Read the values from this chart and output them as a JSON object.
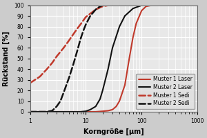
{
  "title": "",
  "xlabel": "Korngröße [µm]",
  "ylabel": "Rückstand [%]",
  "xlim": [
    1,
    1000
  ],
  "ylim": [
    0,
    100
  ],
  "background_color": "#cccccc",
  "plot_background": "#e8e8e8",
  "grid_color": "white",
  "series": [
    {
      "name": "Muster 1 Laser",
      "color": "#c0392b",
      "linestyle": "solid",
      "linewidth": 1.5,
      "x": [
        1,
        5,
        10,
        15,
        20,
        25,
        30,
        35,
        40,
        50,
        60,
        70,
        80,
        100,
        120,
        150,
        200
      ],
      "y": [
        0,
        0,
        0,
        0,
        0.5,
        1,
        2,
        5,
        10,
        25,
        50,
        70,
        83,
        95,
        99,
        100,
        100
      ]
    },
    {
      "name": "Muster 2 Laser",
      "color": "#111111",
      "linestyle": "solid",
      "linewidth": 1.5,
      "x": [
        1,
        3,
        5,
        8,
        10,
        12,
        15,
        18,
        20,
        25,
        30,
        40,
        50,
        70,
        100,
        150
      ],
      "y": [
        0,
        0,
        0,
        0,
        0.5,
        2,
        5,
        12,
        20,
        40,
        60,
        80,
        90,
        97,
        100,
        100
      ]
    },
    {
      "name": "Muster 1 Sedi",
      "color": "#c0392b",
      "linestyle": "dashed",
      "linewidth": 1.8,
      "x": [
        1,
        1.5,
        2,
        2.5,
        3,
        4,
        5,
        6,
        7,
        8,
        10,
        15,
        20,
        25,
        30
      ],
      "y": [
        27,
        33,
        40,
        46,
        52,
        60,
        67,
        73,
        78,
        82,
        89,
        96,
        99,
        100,
        100
      ]
    },
    {
      "name": "Muster 2 Sedi",
      "color": "#111111",
      "linestyle": "dashed",
      "linewidth": 1.8,
      "x": [
        1,
        2,
        2.5,
        3,
        3.5,
        4,
        5,
        6,
        7,
        8,
        9,
        10,
        12,
        15,
        18,
        20
      ],
      "y": [
        0,
        0,
        1,
        5,
        10,
        18,
        32,
        45,
        57,
        68,
        76,
        82,
        90,
        96,
        99,
        100
      ]
    }
  ],
  "legend_fontsize": 5.5,
  "tick_labelsize": 5.5,
  "label_fontsize": 7,
  "legend_loc": "lower right"
}
